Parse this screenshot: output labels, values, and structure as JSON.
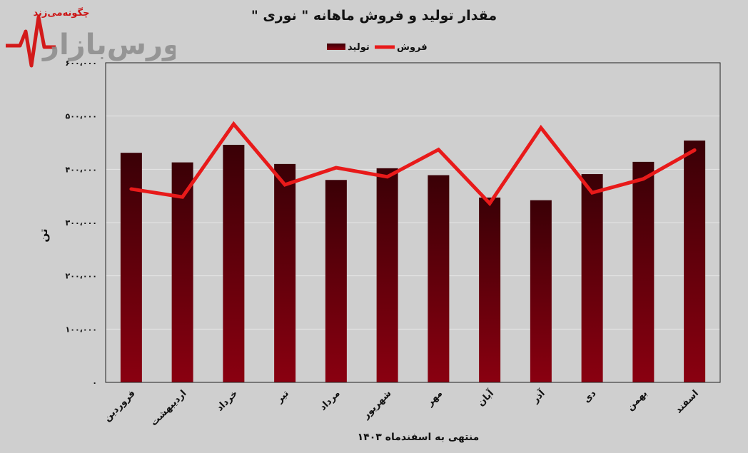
{
  "logo": {
    "tagline": "چگونه‌می‌زند",
    "brand": "بورس‌بازار"
  },
  "chart_data": {
    "type": "bar",
    "title": "مقدار تولید و فروش ماهانه \" نوری \"",
    "xlabel": "منتهی به اسفندماه ۱۴۰۳",
    "ylabel": "تن",
    "ylim": [
      0,
      600000
    ],
    "yticks": [
      0,
      100000,
      200000,
      300000,
      400000,
      500000,
      600000
    ],
    "ytick_labels": [
      "۰",
      "۱۰۰،۰۰۰",
      "۲۰۰،۰۰۰",
      "۳۰۰،۰۰۰",
      "۴۰۰،۰۰۰",
      "۵۰۰،۰۰۰",
      "۶۰۰،۰۰۰"
    ],
    "categories": [
      "فروردین",
      "اردیبهشت",
      "خرداد",
      "تیر",
      "مرداد",
      "شهریور",
      "مهر",
      "آبان",
      "آذر",
      "دی",
      "بهمن",
      "اسفند"
    ],
    "series": [
      {
        "name": "تولید",
        "type": "bar",
        "color": "#6e0008",
        "values": [
          431000,
          413000,
          446000,
          410000,
          380000,
          402000,
          389000,
          347000,
          342000,
          391000,
          414000,
          454000
        ]
      },
      {
        "name": "فروش",
        "type": "line",
        "color": "#e81a1a",
        "values": [
          363000,
          348000,
          485000,
          371000,
          403000,
          386000,
          437000,
          336000,
          478000,
          356000,
          382000,
          436000
        ]
      }
    ],
    "legend_position": "top-center",
    "grid": true
  }
}
